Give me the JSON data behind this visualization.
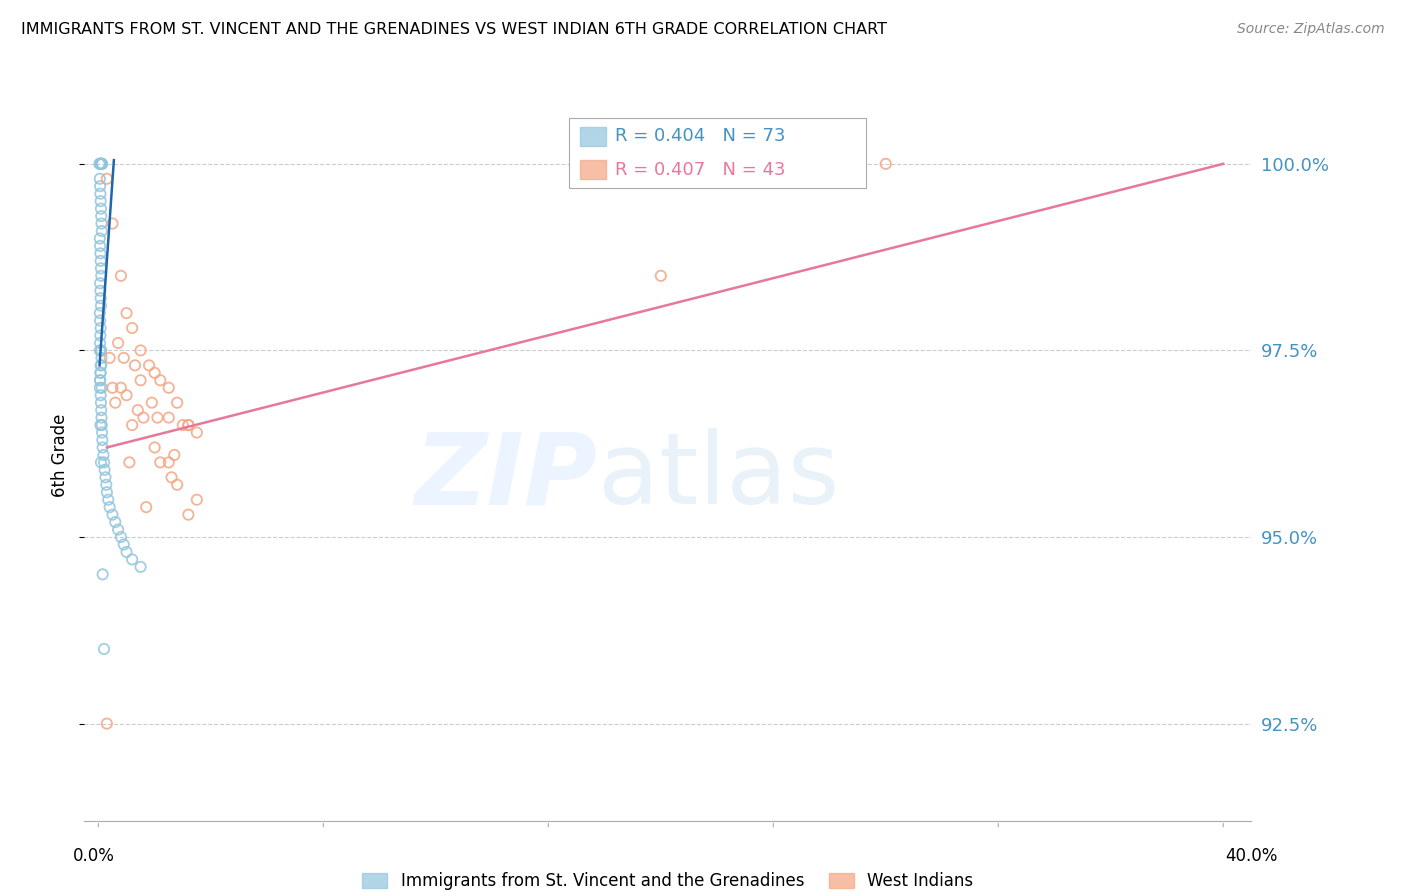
{
  "title": "IMMIGRANTS FROM ST. VINCENT AND THE GRENADINES VS WEST INDIAN 6TH GRADE CORRELATION CHART",
  "source": "Source: ZipAtlas.com",
  "ylabel": "6th Grade",
  "y_ticks": [
    92.5,
    95.0,
    97.5,
    100.0
  ],
  "y_tick_labels": [
    "92.5%",
    "95.0%",
    "97.5%",
    "100.0%"
  ],
  "xlim": [
    0.0,
    40.0
  ],
  "ylim": [
    91.2,
    101.0
  ],
  "blue_label": "Immigrants from St. Vincent and the Grenadines",
  "pink_label": "West Indians",
  "blue_r": "R = 0.404",
  "blue_n": "N = 73",
  "pink_r": "R = 0.407",
  "pink_n": "N = 43",
  "blue_scatter_color": "#92c5de",
  "pink_scatter_color": "#f4a582",
  "blue_line_color": "#2166ac",
  "pink_line_color": "#e8789a",
  "tick_label_color": "#4393c3",
  "blue_legend_color": "#4393c3",
  "pink_legend_color": "#e8789a",
  "blue_x": [
    0.05,
    0.08,
    0.1,
    0.12,
    0.06,
    0.09,
    0.07,
    0.11,
    0.13,
    0.04,
    0.05,
    0.06,
    0.07,
    0.08,
    0.09,
    0.1,
    0.11,
    0.12,
    0.05,
    0.06,
    0.07,
    0.08,
    0.09,
    0.1,
    0.06,
    0.07,
    0.08,
    0.09,
    0.05,
    0.06,
    0.08,
    0.07,
    0.06,
    0.05,
    0.09,
    0.1,
    0.11,
    0.08,
    0.07,
    0.06,
    0.05,
    0.08,
    0.09,
    0.1,
    0.11,
    0.12,
    0.13,
    0.14,
    0.15,
    0.18,
    0.2,
    0.22,
    0.25,
    0.28,
    0.3,
    0.35,
    0.4,
    0.5,
    0.6,
    0.7,
    0.8,
    0.9,
    1.0,
    1.2,
    1.5,
    0.1,
    0.08,
    0.06,
    0.12,
    0.07,
    0.09,
    0.15,
    0.2
  ],
  "blue_y": [
    100.0,
    100.0,
    100.0,
    100.0,
    100.0,
    100.0,
    100.0,
    100.0,
    100.0,
    100.0,
    99.8,
    99.7,
    99.6,
    99.5,
    99.4,
    99.3,
    99.2,
    99.1,
    99.0,
    98.9,
    98.8,
    98.7,
    98.6,
    98.5,
    98.4,
    98.3,
    98.2,
    98.1,
    98.0,
    97.9,
    97.8,
    97.7,
    97.6,
    97.5,
    97.5,
    97.5,
    97.4,
    97.3,
    97.2,
    97.1,
    97.0,
    96.9,
    96.8,
    96.7,
    96.6,
    96.5,
    96.4,
    96.3,
    96.2,
    96.1,
    96.0,
    95.9,
    95.8,
    95.7,
    95.6,
    95.5,
    95.4,
    95.3,
    95.2,
    95.1,
    95.0,
    94.9,
    94.8,
    94.7,
    94.6,
    97.3,
    97.2,
    97.1,
    97.0,
    96.5,
    96.0,
    94.5,
    93.5
  ],
  "blue_line_x": [
    0.04,
    0.55
  ],
  "blue_line_y": [
    97.3,
    100.05
  ],
  "pink_x": [
    0.3,
    0.5,
    0.8,
    1.0,
    1.2,
    1.5,
    1.8,
    2.0,
    2.2,
    2.5,
    2.8,
    3.0,
    3.2,
    3.5,
    0.7,
    1.3,
    1.9,
    2.5,
    3.2,
    0.9,
    1.5,
    2.1,
    2.7,
    0.4,
    1.0,
    1.6,
    2.2,
    2.8,
    0.8,
    1.4,
    2.0,
    2.6,
    3.2,
    0.5,
    1.2,
    2.5,
    3.5,
    20.0,
    28.0,
    0.6,
    1.1,
    1.7,
    0.3
  ],
  "pink_y": [
    99.8,
    99.2,
    98.5,
    98.0,
    97.8,
    97.5,
    97.3,
    97.2,
    97.1,
    97.0,
    96.8,
    96.5,
    96.5,
    96.4,
    97.6,
    97.3,
    96.8,
    96.6,
    96.5,
    97.4,
    97.1,
    96.6,
    96.1,
    97.4,
    96.9,
    96.6,
    96.0,
    95.7,
    97.0,
    96.7,
    96.2,
    95.8,
    95.3,
    97.0,
    96.5,
    96.0,
    95.5,
    98.5,
    100.0,
    96.8,
    96.0,
    95.4,
    92.5
  ],
  "pink_line_x": [
    0.3,
    40.0
  ],
  "pink_line_y": [
    96.2,
    100.0
  ]
}
